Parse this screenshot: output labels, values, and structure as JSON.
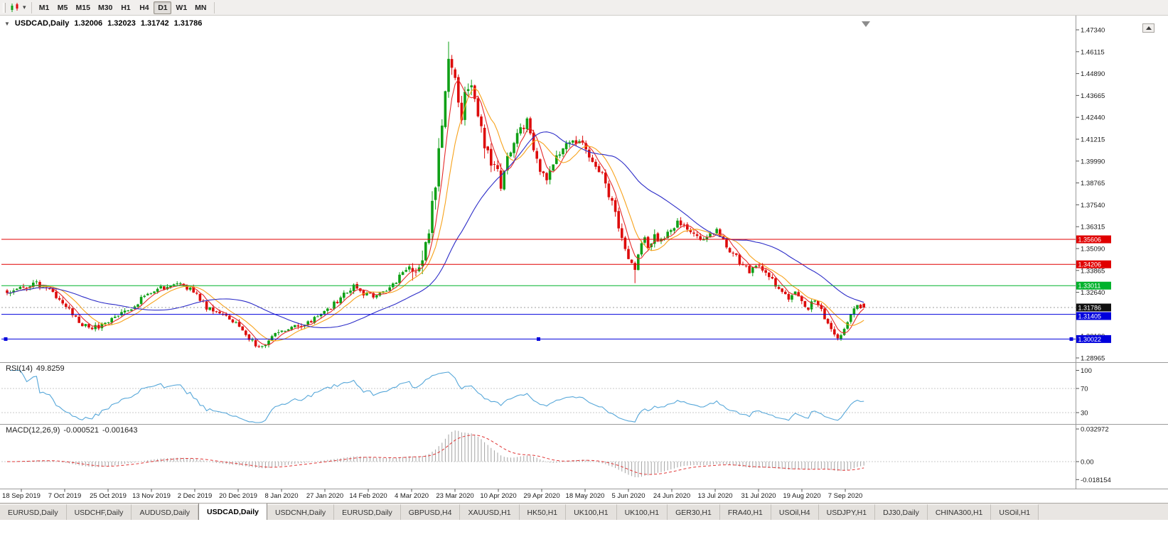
{
  "toolbar": {
    "timeframes": [
      {
        "label": "M1",
        "active": false
      },
      {
        "label": "M5",
        "active": false
      },
      {
        "label": "M15",
        "active": false
      },
      {
        "label": "M30",
        "active": false
      },
      {
        "label": "H1",
        "active": false
      },
      {
        "label": "H4",
        "active": false
      },
      {
        "label": "D1",
        "active": true
      },
      {
        "label": "W1",
        "active": false
      },
      {
        "label": "MN",
        "active": false
      }
    ]
  },
  "chart": {
    "title": {
      "symbol": "USDCAD,Daily",
      "open": "1.32006",
      "high": "1.32023",
      "low": "1.31742",
      "close": "1.31786"
    },
    "price_ticks": [
      "1.47340",
      "1.46115",
      "1.44890",
      "1.43665",
      "1.42440",
      "1.41215",
      "1.39990",
      "1.38765",
      "1.37540",
      "1.36315",
      "1.35090",
      "1.33865",
      "1.32640",
      "1.31415",
      "1.30190",
      "1.28965"
    ],
    "date_axis": [
      "18 Sep 2019",
      "7 Oct 2019",
      "25 Oct 2019",
      "13 Nov 2019",
      "2 Dec 2019",
      "20 Dec 2019",
      "8 Jan 2020",
      "27 Jan 2020",
      "14 Feb 2020",
      "4 Mar 2020",
      "23 Mar 2020",
      "10 Apr 2020",
      "29 Apr 2020",
      "18 May 2020",
      "5 Jun 2020",
      "24 Jun 2020",
      "13 Jul 2020",
      "31 Jul 2020",
      "19 Aug 2020",
      "7 Sep 2020"
    ],
    "levels": [
      {
        "price": "1.35606",
        "value": 1.35606,
        "color": "#e00000",
        "style": "solid",
        "handles": false
      },
      {
        "price": "1.34206",
        "value": 1.34206,
        "color": "#e00000",
        "style": "solid",
        "handles": false
      },
      {
        "price": "1.33011",
        "value": 1.33011,
        "color": "#00b22c",
        "style": "solid",
        "handles": false
      },
      {
        "price": "1.31786",
        "value": 1.31786,
        "color": "#9c9c9c",
        "style": "dotted",
        "tag": "#101010",
        "handles": false
      },
      {
        "price": "1.31405",
        "value": 1.31405,
        "color": "#0000dc",
        "style": "solid",
        "handles": false
      },
      {
        "price": "1.30022",
        "value": 1.30022,
        "color": "#0000dc",
        "style": "solid",
        "handles": true
      }
    ],
    "colors": {
      "bull": "#0FA016",
      "bear": "#DD0B0B",
      "ma_fast": "#E52B2B",
      "ma_mid": "#F7A21B",
      "ma_slow": "#2D2DC8",
      "axis_text": "#1a1a1a"
    }
  },
  "rsi": {
    "label": "RSI(14)",
    "value": "49.8259",
    "color": "#56A7D9",
    "ticks": [
      {
        "value": 100,
        "label": "100",
        "line": false
      },
      {
        "value": 70,
        "label": "70",
        "line": true
      },
      {
        "value": 30,
        "label": "30",
        "line": true
      }
    ]
  },
  "macd": {
    "label": "MACD(12,26,9)",
    "value_main": "-0.000521",
    "value_signal": "-0.001643",
    "colors": {
      "histogram": "#A3A3A3",
      "signal": "#E03636"
    },
    "ticks": [
      {
        "value": 0.032972,
        "label": "0.032972",
        "line": false
      },
      {
        "value": 0,
        "label": "0.00",
        "line": true
      },
      {
        "value": -0.018154,
        "label": "-0.018154",
        "line": false
      }
    ]
  },
  "tabs": [
    {
      "label": "EURUSD,Daily",
      "active": false
    },
    {
      "label": "USDCHF,Daily",
      "active": false
    },
    {
      "label": "AUDUSD,Daily",
      "active": false
    },
    {
      "label": "USDCAD,Daily",
      "active": true
    },
    {
      "label": "USDCNH,Daily",
      "active": false
    },
    {
      "label": "EURUSD,Daily",
      "active": false
    },
    {
      "label": "GBPUSD,H4",
      "active": false
    },
    {
      "label": "XAUUSD,H1",
      "active": false
    },
    {
      "label": "HK50,H1",
      "active": false
    },
    {
      "label": "UK100,H1",
      "active": false
    },
    {
      "label": "UK100,H1",
      "active": false
    },
    {
      "label": "GER30,H1",
      "active": false
    },
    {
      "label": "FRA40,H1",
      "active": false
    },
    {
      "label": "USOil,H4",
      "active": false
    },
    {
      "label": "USDJPY,H1",
      "active": false
    },
    {
      "label": "DJ30,Daily",
      "active": false
    },
    {
      "label": "CHINA300,H1",
      "active": false
    },
    {
      "label": "USOil,H1",
      "active": false
    }
  ],
  "chart_data": {
    "type": "candlestick",
    "symbol": "USDCAD",
    "timeframe": "Daily",
    "bars": 263,
    "visible_price_range": [
      1.28804,
      1.47817
    ],
    "x_range": [
      "18 Sep 2019",
      "7 Sep 2020"
    ],
    "last_bar": {
      "open": 1.32006,
      "high": 1.32023,
      "low": 1.31742,
      "close": 1.31786
    },
    "price_path_anchors": [
      [
        0,
        1.326
      ],
      [
        5,
        1.3292
      ],
      [
        9,
        1.331
      ],
      [
        13,
        1.3272
      ],
      [
        17,
        1.3212
      ],
      [
        21,
        1.3122
      ],
      [
        25,
        1.3056
      ],
      [
        29,
        1.3082
      ],
      [
        34,
        1.3142
      ],
      [
        38,
        1.3182
      ],
      [
        42,
        1.3238
      ],
      [
        47,
        1.3288
      ],
      [
        51,
        1.3308
      ],
      [
        55,
        1.3292
      ],
      [
        58,
        1.3252
      ],
      [
        61,
        1.3182
      ],
      [
        64,
        1.3162
      ],
      [
        68,
        1.3122
      ],
      [
        71,
        1.3062
      ],
      [
        74,
        1.2992
      ],
      [
        77,
        1.2968
      ],
      [
        80,
        1.2992
      ],
      [
        83,
        1.3042
      ],
      [
        87,
        1.3062
      ],
      [
        91,
        1.3082
      ],
      [
        95,
        1.3122
      ],
      [
        99,
        1.3182
      ],
      [
        103,
        1.3252
      ],
      [
        106,
        1.3292
      ],
      [
        109,
        1.3257
      ],
      [
        113,
        1.3242
      ],
      [
        117,
        1.3292
      ],
      [
        120,
        1.3352
      ],
      [
        122,
        1.3392
      ],
      [
        124,
        1.3422
      ],
      [
        126,
        1.3392
      ],
      [
        128,
        1.3522
      ],
      [
        130,
        1.3752
      ],
      [
        132,
        1.4052
      ],
      [
        134,
        1.4402
      ],
      [
        135,
        1.46
      ],
      [
        137,
        1.4482
      ],
      [
        139,
        1.4252
      ],
      [
        141,
        1.4442
      ],
      [
        143,
        1.4302
      ],
      [
        145,
        1.4182
      ],
      [
        147,
        1.4052
      ],
      [
        149,
        1.3942
      ],
      [
        151,
        1.3872
      ],
      [
        153,
        1.4022
      ],
      [
        155,
        1.4092
      ],
      [
        157,
        1.4172
      ],
      [
        159,
        1.4232
      ],
      [
        161,
        1.4082
      ],
      [
        163,
        1.3952
      ],
      [
        165,
        1.3892
      ],
      [
        167,
        1.3982
      ],
      [
        170,
        1.4072
      ],
      [
        173,
        1.4122
      ],
      [
        176,
        1.4082
      ],
      [
        179,
        1.3972
      ],
      [
        182,
        1.3912
      ],
      [
        185,
        1.3762
      ],
      [
        188,
        1.3562
      ],
      [
        190,
        1.3432
      ],
      [
        192,
        1.3392
      ],
      [
        194,
        1.3562
      ],
      [
        196,
        1.3532
      ],
      [
        198,
        1.3582
      ],
      [
        200,
        1.3552
      ],
      [
        202,
        1.3602
      ],
      [
        205,
        1.3652
      ],
      [
        208,
        1.3622
      ],
      [
        211,
        1.3582
      ],
      [
        213,
        1.3552
      ],
      [
        215,
        1.3582
      ],
      [
        217,
        1.3612
      ],
      [
        219,
        1.3562
      ],
      [
        221,
        1.3502
      ],
      [
        223,
        1.3462
      ],
      [
        225,
        1.3412
      ],
      [
        227,
        1.3382
      ],
      [
        229,
        1.3422
      ],
      [
        231,
        1.3392
      ],
      [
        233,
        1.3352
      ],
      [
        235,
        1.3302
      ],
      [
        237,
        1.3262
      ],
      [
        239,
        1.3222
      ],
      [
        241,
        1.3262
      ],
      [
        243,
        1.3202
      ],
      [
        245,
        1.3182
      ],
      [
        247,
        1.3222
      ],
      [
        249,
        1.3162
      ],
      [
        251,
        1.3092
      ],
      [
        253,
        1.3032
      ],
      [
        254,
        1.2996
      ],
      [
        256,
        1.3072
      ],
      [
        258,
        1.3132
      ],
      [
        260,
        1.319
      ],
      [
        262,
        1.31786
      ]
    ],
    "wick_overrides": [
      {
        "bar": 135,
        "high": 1.4668
      },
      {
        "bar": 77,
        "low": 1.2952
      },
      {
        "bar": 192,
        "low": 1.3315
      },
      {
        "bar": 254,
        "low": 1.2994
      }
    ],
    "overlays": [
      {
        "type": "sma",
        "period": 5,
        "color": "#E52B2B"
      },
      {
        "type": "sma",
        "period": 10,
        "color": "#F7A21B"
      },
      {
        "type": "sma",
        "period": 34,
        "color": "#2D2DC8"
      }
    ],
    "indicators": [
      {
        "name": "RSI",
        "period": 14,
        "current": 49.8259,
        "levels": [
          30,
          70
        ]
      },
      {
        "name": "MACD",
        "fast": 12,
        "slow": 26,
        "signal": 9,
        "current_main": -0.000521,
        "current_signal": -0.001643,
        "scale_max": 0.032972,
        "scale_min": -0.018154
      }
    ]
  }
}
